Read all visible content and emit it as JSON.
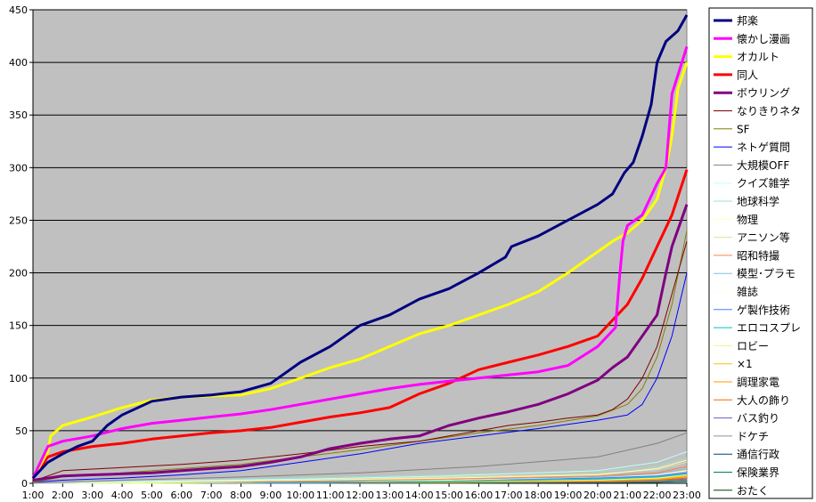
{
  "chart_data": {
    "type": "line",
    "xlabel": "",
    "ylabel": "",
    "ylim": [
      0,
      450
    ],
    "y_ticks": [
      0,
      50,
      100,
      150,
      200,
      250,
      300,
      350,
      400,
      450
    ],
    "x_range": [
      1,
      23
    ],
    "x_ticks": [
      "1:00",
      "2:00",
      "3:00",
      "4:00",
      "5:00",
      "6:00",
      "7:00",
      "8:00",
      "9:00",
      "10:00",
      "11:00",
      "12:00",
      "13:00",
      "14:00",
      "15:00",
      "16:00",
      "17:00",
      "18:00",
      "19:00",
      "20:00",
      "21:00",
      "22:00",
      "23:00"
    ],
    "grid": "horizontal",
    "plot_background": "#c0c0c0",
    "legend_position": "right",
    "series": [
      {
        "name": "邦楽",
        "color": "#000080",
        "bold": true,
        "x": [
          1,
          1.5,
          2,
          2.5,
          3,
          3.5,
          4,
          5,
          6,
          7,
          8,
          9,
          10,
          11,
          12,
          13,
          14,
          15,
          16,
          16.9,
          17.1,
          18,
          19,
          20,
          20.5,
          20.9,
          21.2,
          21.5,
          21.8,
          22,
          22.3,
          22.7,
          23
        ],
        "y": [
          5,
          20,
          28,
          35,
          40,
          55,
          65,
          78,
          82,
          84,
          87,
          95,
          115,
          130,
          150,
          160,
          175,
          185,
          200,
          215,
          225,
          235,
          250,
          265,
          275,
          295,
          305,
          330,
          360,
          400,
          420,
          430,
          445
        ]
      },
      {
        "name": "懐かし漫画",
        "color": "#ff00ff",
        "bold": true,
        "x": [
          1,
          1.5,
          2,
          3,
          4,
          5,
          6,
          7,
          8,
          9,
          10,
          11,
          12,
          13,
          14,
          15,
          16,
          17,
          18,
          19,
          20,
          20.6,
          20.75,
          20.85,
          21,
          21.5,
          22,
          22.3,
          22.5,
          23
        ],
        "y": [
          5,
          35,
          40,
          45,
          52,
          57,
          60,
          63,
          66,
          70,
          75,
          80,
          85,
          90,
          94,
          97,
          100,
          103,
          106,
          112,
          130,
          148,
          200,
          230,
          245,
          255,
          285,
          300,
          370,
          415
        ]
      },
      {
        "name": "オカルト",
        "color": "#ffff00",
        "bold": true,
        "x": [
          1,
          1.5,
          1.6,
          2,
          3,
          4,
          5,
          6,
          7,
          8,
          9,
          10,
          11,
          12,
          13,
          14,
          15,
          16,
          17,
          18,
          19,
          20,
          20.5,
          21,
          21.5,
          22,
          22.3,
          22.5,
          22.7,
          23
        ],
        "y": [
          5,
          30,
          45,
          55,
          63,
          72,
          79,
          82,
          83,
          84,
          90,
          100,
          110,
          118,
          130,
          142,
          150,
          160,
          170,
          182,
          200,
          220,
          230,
          238,
          250,
          270,
          300,
          330,
          375,
          400
        ]
      },
      {
        "name": "同人",
        "color": "#ff0000",
        "bold": true,
        "x": [
          1,
          1.5,
          2,
          3,
          4,
          5,
          6,
          7,
          8,
          9,
          10,
          11,
          12,
          13,
          14,
          15,
          16,
          17,
          18,
          19,
          20,
          20.6,
          21,
          21.5,
          22,
          22.5,
          23
        ],
        "y": [
          5,
          25,
          30,
          35,
          38,
          42,
          45,
          48,
          50,
          53,
          58,
          63,
          67,
          72,
          85,
          95,
          108,
          115,
          122,
          130,
          140,
          158,
          170,
          195,
          225,
          255,
          298
        ]
      },
      {
        "name": "ボウリング",
        "color": "#800080",
        "bold": true,
        "x": [
          1,
          1.5,
          2,
          3,
          4,
          5,
          6,
          7,
          8,
          9,
          10,
          11,
          12,
          13,
          14,
          15,
          16,
          17,
          18,
          19,
          20,
          20.5,
          21,
          21.5,
          22,
          22.3,
          22.5,
          23
        ],
        "y": [
          3,
          5,
          7,
          8,
          9,
          10,
          12,
          14,
          16,
          20,
          25,
          33,
          38,
          42,
          45,
          55,
          62,
          68,
          75,
          85,
          98,
          110,
          120,
          140,
          160,
          200,
          225,
          265
        ]
      },
      {
        "name": "なりきりネタ",
        "color": "#800000",
        "bold": false,
        "x": [
          1,
          2,
          4,
          6,
          8,
          10,
          12,
          14,
          15,
          16,
          17,
          18,
          19,
          20,
          20.5,
          21,
          21.5,
          22,
          22.5,
          23
        ],
        "y": [
          2,
          12,
          15,
          18,
          22,
          28,
          35,
          40,
          45,
          50,
          55,
          58,
          62,
          65,
          70,
          80,
          100,
          130,
          180,
          230
        ]
      },
      {
        "name": "SF",
        "color": "#808000",
        "bold": false,
        "x": [
          1,
          2,
          4,
          6,
          8,
          10,
          12,
          14,
          16,
          18,
          20,
          21,
          21.5,
          22,
          22.5,
          23
        ],
        "y": [
          1,
          6,
          10,
          14,
          18,
          25,
          32,
          40,
          48,
          55,
          64,
          75,
          90,
          120,
          170,
          240
        ]
      },
      {
        "name": "ネトゲ質問",
        "color": "#0000ff",
        "bold": false,
        "x": [
          1,
          2,
          4,
          6,
          8,
          10,
          12,
          14,
          16,
          18,
          19,
          20,
          21,
          21.5,
          22,
          22.5,
          23
        ],
        "y": [
          1,
          3,
          5,
          8,
          12,
          20,
          28,
          38,
          45,
          52,
          56,
          60,
          65,
          75,
          100,
          140,
          200
        ]
      },
      {
        "name": "大規模OFF",
        "color": "#808080",
        "bold": false,
        "x": [
          1,
          4,
          8,
          12,
          16,
          20,
          22,
          23
        ],
        "y": [
          0,
          3,
          6,
          10,
          16,
          25,
          38,
          48
        ]
      },
      {
        "name": "クイズ雑学",
        "color": "#c0ffff",
        "bold": false,
        "x": [
          1,
          5,
          10,
          15,
          20,
          22,
          23
        ],
        "y": [
          0,
          2,
          4,
          7,
          12,
          20,
          30
        ]
      },
      {
        "name": "地球科学",
        "color": "#a0e0c0",
        "bold": false,
        "x": [
          1,
          5,
          10,
          15,
          20,
          22,
          23
        ],
        "y": [
          0,
          2,
          5,
          8,
          11,
          16,
          24
        ]
      },
      {
        "name": "物理",
        "color": "#ffffc0",
        "bold": false,
        "x": [
          1,
          5,
          10,
          15,
          20,
          22,
          23
        ],
        "y": [
          0,
          1,
          3,
          5,
          8,
          14,
          22
        ]
      },
      {
        "name": "アニソン等",
        "color": "#e0e0a0",
        "bold": false,
        "x": [
          1,
          5,
          10,
          15,
          20,
          22,
          23
        ],
        "y": [
          0,
          1,
          3,
          6,
          9,
          13,
          20
        ]
      },
      {
        "name": "昭和特撮",
        "color": "#ff8040",
        "bold": false,
        "x": [
          1,
          5,
          10,
          15,
          20,
          22,
          23
        ],
        "y": [
          0,
          1,
          2,
          4,
          7,
          10,
          16
        ]
      },
      {
        "name": "模型･プラモ",
        "color": "#80c0e0",
        "bold": false,
        "x": [
          1,
          5,
          10,
          15,
          20,
          22,
          23
        ],
        "y": [
          0,
          1,
          2,
          4,
          6,
          9,
          14
        ]
      },
      {
        "name": "雑誌",
        "color": "#ffffe0",
        "bold": false,
        "x": [
          1,
          5,
          10,
          15,
          20,
          22,
          23
        ],
        "y": [
          0,
          1,
          2,
          3,
          6,
          8,
          12
        ]
      },
      {
        "name": "ゲ製作技術",
        "color": "#4080ff",
        "bold": false,
        "x": [
          1,
          5,
          10,
          15,
          20,
          22,
          23
        ],
        "y": [
          0,
          1,
          2,
          3,
          5,
          7,
          10
        ]
      },
      {
        "name": "エロコスプレ",
        "color": "#00c0c0",
        "bold": false,
        "x": [
          1,
          5,
          10,
          15,
          20,
          22,
          23
        ],
        "y": [
          0,
          1,
          1,
          2,
          4,
          6,
          9
        ]
      },
      {
        "name": "ロビー",
        "color": "#e0ff80",
        "bold": false,
        "x": [
          1,
          5,
          10,
          15,
          20,
          22,
          23
        ],
        "y": [
          0,
          0,
          1,
          2,
          3,
          5,
          8
        ]
      },
      {
        "name": "×1",
        "color": "#ffc000",
        "bold": false,
        "x": [
          1,
          5,
          10,
          15,
          20,
          22,
          23
        ],
        "y": [
          0,
          0,
          1,
          2,
          3,
          4,
          7
        ]
      },
      {
        "name": "調理家電",
        "color": "#ff9900",
        "bold": false,
        "x": [
          1,
          5,
          10,
          15,
          20,
          22,
          23
        ],
        "y": [
          0,
          0,
          1,
          1,
          2,
          4,
          6
        ]
      },
      {
        "name": "大人の飾り",
        "color": "#ff6600",
        "bold": false,
        "x": [
          1,
          5,
          10,
          15,
          20,
          22,
          23
        ],
        "y": [
          0,
          0,
          1,
          1,
          2,
          3,
          5
        ]
      },
      {
        "name": "バス釣り",
        "color": "#6060c0",
        "bold": false,
        "x": [
          1,
          5,
          10,
          15,
          20,
          22,
          23
        ],
        "y": [
          0,
          0,
          0,
          1,
          2,
          3,
          4
        ]
      },
      {
        "name": "ドケチ",
        "color": "#909090",
        "bold": false,
        "x": [
          1,
          5,
          10,
          15,
          20,
          22,
          23
        ],
        "y": [
          0,
          0,
          0,
          1,
          1,
          2,
          3
        ]
      },
      {
        "name": "通信行政",
        "color": "#004080",
        "bold": false,
        "x": [
          1,
          5,
          10,
          15,
          20,
          22,
          23
        ],
        "y": [
          0,
          0,
          0,
          1,
          1,
          2,
          3
        ]
      },
      {
        "name": "保険業界",
        "color": "#008060",
        "bold": false,
        "x": [
          1,
          5,
          10,
          15,
          20,
          22,
          23
        ],
        "y": [
          0,
          0,
          0,
          0,
          1,
          1,
          2
        ]
      },
      {
        "name": "おたく",
        "color": "#004000",
        "bold": false,
        "x": [
          1,
          5,
          10,
          15,
          20,
          22,
          23
        ],
        "y": [
          0,
          0,
          0,
          0,
          1,
          1,
          2
        ]
      }
    ]
  }
}
